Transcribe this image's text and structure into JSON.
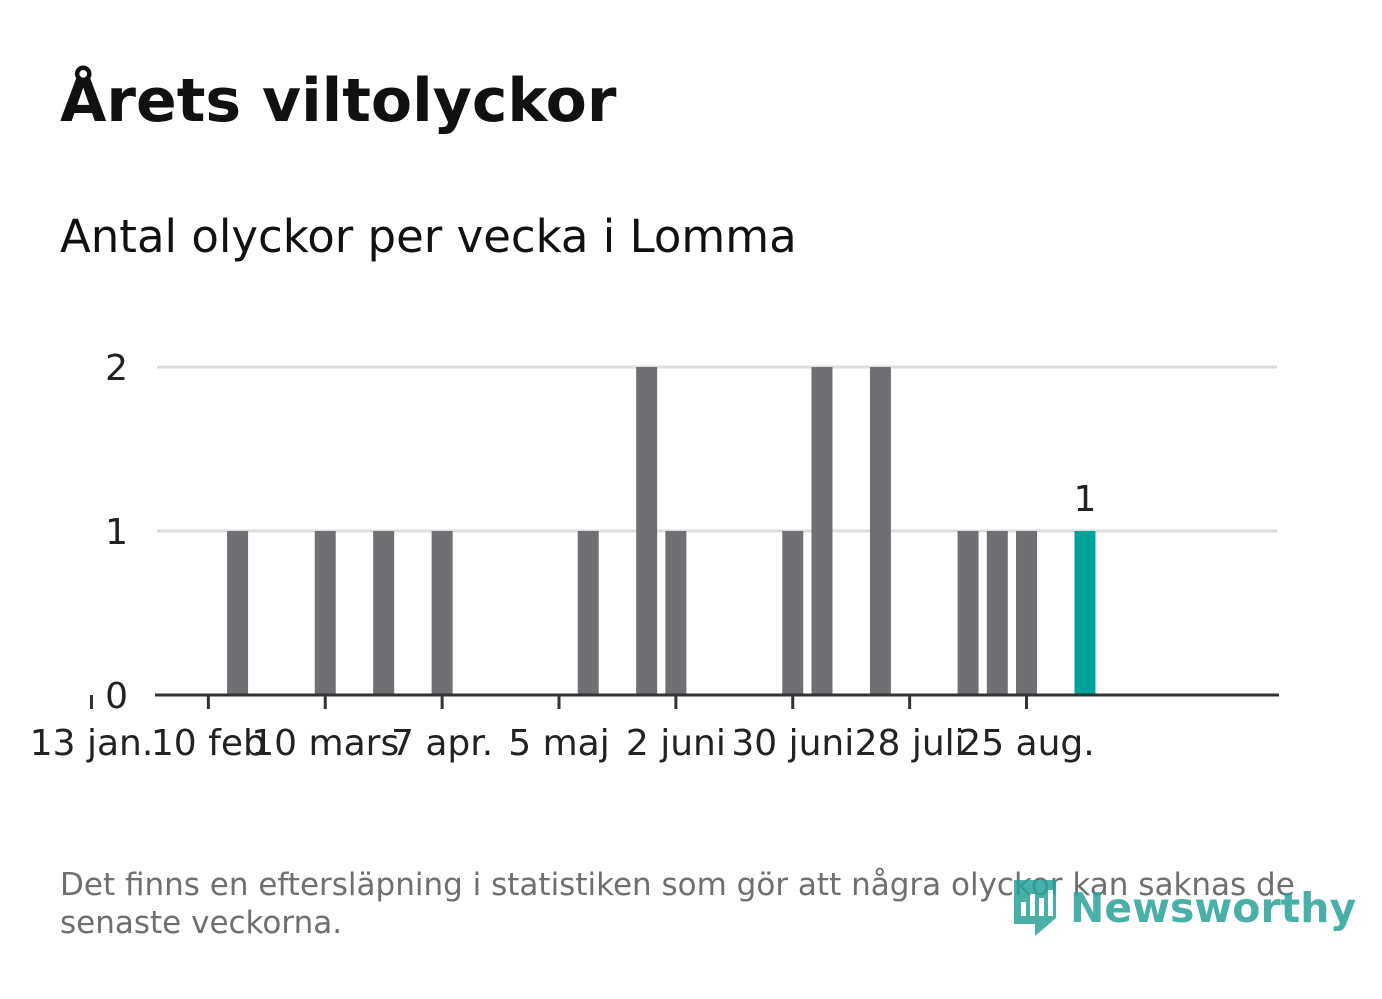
{
  "title": "Årets viltolyckor",
  "subtitle": "Antal olyckor per vecka i Lomma",
  "footer_note": "Det finns en eftersläpning i statistiken som gör att några olyckor kan saknas de senaste veckorna.",
  "logo_text": "Newsworthy",
  "colors": {
    "bar": "#706f74",
    "highlight": "#00a39a",
    "grid": "#dddddd",
    "axis": "#333333",
    "text": "#222222"
  },
  "chart_data": {
    "type": "bar",
    "title": "Årets viltolyckor",
    "subtitle": "Antal olyckor per vecka i Lomma",
    "xlabel": "",
    "ylabel": "",
    "ylim": [
      0,
      2
    ],
    "yticks": [
      0,
      1,
      2
    ],
    "grid": true,
    "weeks": [
      1,
      2,
      3,
      4,
      5,
      6,
      7,
      8,
      9,
      10,
      11,
      12,
      13,
      14,
      15,
      16,
      17,
      18,
      19,
      20,
      21,
      22,
      23,
      24,
      25,
      26,
      27,
      28,
      29,
      30,
      31,
      32,
      33,
      34,
      35,
      36,
      37
    ],
    "values": [
      0,
      0,
      0,
      0,
      0,
      0,
      0,
      1,
      0,
      0,
      1,
      0,
      1,
      0,
      1,
      0,
      0,
      0,
      0,
      1,
      0,
      2,
      1,
      0,
      0,
      0,
      1,
      2,
      0,
      2,
      0,
      0,
      1,
      1,
      1,
      0,
      1
    ],
    "highlight_index": 36,
    "highlight_label": "1",
    "x_tick_labels": [
      {
        "label": "13 jan.",
        "week": 3
      },
      {
        "label": "10 feb",
        "week": 7
      },
      {
        "label": "10 mars",
        "week": 11
      },
      {
        "label": "7 apr.",
        "week": 15
      },
      {
        "label": "5 maj",
        "week": 19
      },
      {
        "label": "2 juni",
        "week": 23
      },
      {
        "label": "30 juni",
        "week": 27
      },
      {
        "label": "28 juli",
        "week": 31
      },
      {
        "label": "25 aug.",
        "week": 35
      }
    ]
  }
}
